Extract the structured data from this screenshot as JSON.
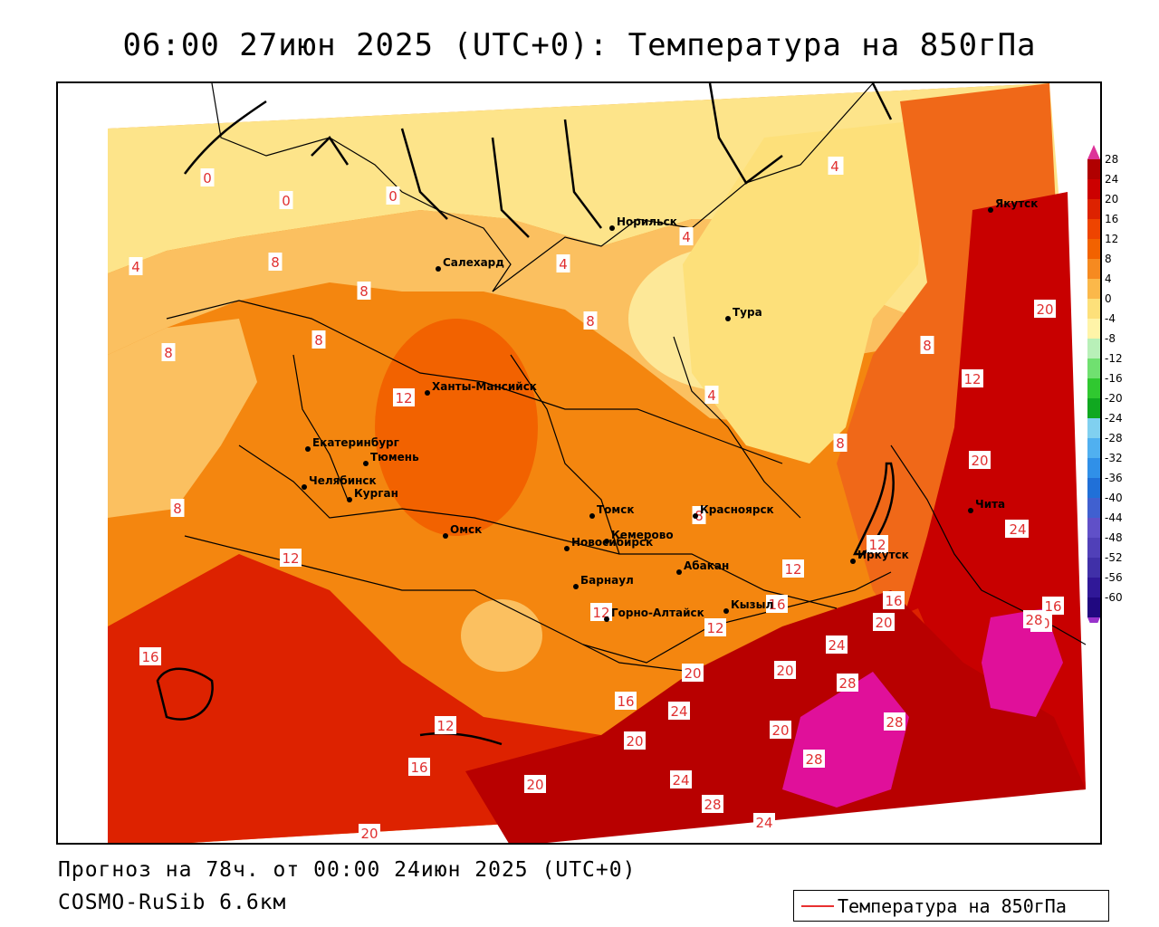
{
  "title": "06:00 27июн 2025 (UTC+0): Температура на 850гПа",
  "footer": {
    "forecast": "Прогноз на 78ч. от 00:00 24июн 2025 (UTC+0)",
    "model": "COSMO-RuSib 6.6км"
  },
  "legend": {
    "label": "Температура на 850гПа",
    "line_color": "#e83030"
  },
  "colorbar": {
    "levels": [
      "28",
      "24",
      "20",
      "16",
      "12",
      "8",
      "4",
      "0",
      "-4",
      "-8",
      "-12",
      "-16",
      "-20",
      "-24",
      "-28",
      "-32",
      "-36",
      "-40",
      "-44",
      "-48",
      "-52",
      "-56",
      "-60"
    ],
    "colors": [
      "#b00000",
      "#cc0000",
      "#dd2200",
      "#ee4400",
      "#f26200",
      "#f68a20",
      "#fbb84a",
      "#fde07a",
      "#fff4a8",
      "#b8f0b8",
      "#70e070",
      "#30c830",
      "#10a820",
      "#80d0f0",
      "#50b0f0",
      "#3090e8",
      "#2070d8",
      "#4060d0",
      "#6050c8",
      "#5040b8",
      "#4030a8",
      "#301898",
      "#200880"
    ],
    "top_color": "#dd3399",
    "bottom_color": "#9933cc"
  },
  "cities": [
    {
      "name": "Норильск"
    },
    {
      "name": "Якутск"
    },
    {
      "name": "Салехард"
    },
    {
      "name": "Тура"
    },
    {
      "name": "Ханты-Мансийск"
    },
    {
      "name": "Екатеринбург"
    },
    {
      "name": "Тюмень"
    },
    {
      "name": "Челябинск"
    },
    {
      "name": "Курган"
    },
    {
      "name": "Омск"
    },
    {
      "name": "Новосибирск"
    },
    {
      "name": "Томск"
    },
    {
      "name": "Кемерово"
    },
    {
      "name": "Красноярск"
    },
    {
      "name": "Абакан"
    },
    {
      "name": "Барнаул"
    },
    {
      "name": "Горно-Алтайск"
    },
    {
      "name": "Кызыл"
    },
    {
      "name": "Иркутск"
    },
    {
      "name": "Чита"
    }
  ],
  "contour_labels": [
    "0",
    "0",
    "0",
    "4",
    "4",
    "4",
    "4",
    "4",
    "4",
    "8",
    "8",
    "8",
    "8",
    "8",
    "8",
    "8",
    "8",
    "8",
    "12",
    "12",
    "12",
    "12",
    "12",
    "12",
    "12",
    "12",
    "16",
    "16",
    "16",
    "16",
    "16",
    "16",
    "20",
    "20",
    "20",
    "20",
    "20",
    "20",
    "20",
    "20",
    "20",
    "20",
    "24",
    "24",
    "24",
    "24",
    "24",
    "24",
    "28",
    "28",
    "28",
    "28",
    "28"
  ]
}
